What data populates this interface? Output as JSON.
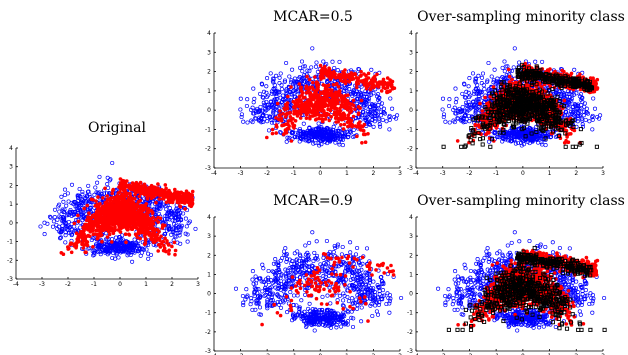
{
  "chart_data": [
    {
      "type": "scatter",
      "title": "Original",
      "xlim": [
        -4,
        3
      ],
      "ylim": [
        -3,
        4
      ],
      "xticks": [
        "-4",
        "-3",
        "-2",
        "-1",
        "0",
        "1",
        "2",
        "3"
      ],
      "yticks": [
        "4",
        "3",
        "2",
        "1",
        "0",
        "-1",
        "-2",
        "-3"
      ],
      "series": [
        {
          "color": "#0000ff",
          "marker": "open-circle",
          "shape": "majority-dome"
        },
        {
          "color": "#ff0000",
          "marker": "filled-dot",
          "shape": "minority-dome-and-band"
        }
      ]
    },
    {
      "type": "scatter",
      "title": "MCAR=0.5",
      "xlim": [
        -4,
        3
      ],
      "ylim": [
        -3,
        4
      ],
      "xticks": [
        "-4",
        "-3",
        "-2",
        "-1",
        "0",
        "1",
        "2",
        "3"
      ],
      "yticks": [
        "4",
        "3",
        "2",
        "1",
        "0",
        "-1",
        "-2",
        "-3"
      ],
      "missing_rate": 0.5,
      "series": [
        {
          "color": "#0000ff",
          "marker": "open-circle",
          "shape": "majority-dome"
        },
        {
          "color": "#ff0000",
          "marker": "filled-dot",
          "shape": "minority-dome-and-band"
        }
      ]
    },
    {
      "type": "scatter",
      "title": "Over-sampling minority class",
      "xlim": [
        -4,
        3
      ],
      "ylim": [
        -3,
        4
      ],
      "xticks": [
        "-4",
        "-3",
        "-2",
        "-1",
        "0",
        "1",
        "2",
        "3"
      ],
      "yticks": [
        "4",
        "3",
        "2",
        "1",
        "0",
        "-1",
        "-2",
        "-3"
      ],
      "series": [
        {
          "color": "#0000ff",
          "marker": "open-circle",
          "shape": "majority-dome"
        },
        {
          "color": "#ff0000",
          "marker": "filled-dot",
          "shape": "minority-dome-and-band"
        },
        {
          "color": "#000000",
          "marker": "open-square",
          "shape": "synthetic-samples"
        }
      ]
    },
    {
      "type": "scatter",
      "title": "MCAR=0.9",
      "xlim": [
        -4,
        3
      ],
      "ylim": [
        -3,
        4
      ],
      "xticks": [
        "-4",
        "-3",
        "-2",
        "-1",
        "0",
        "1",
        "2",
        "3"
      ],
      "yticks": [
        "4",
        "3",
        "2",
        "1",
        "0",
        "-1",
        "-2",
        "-3"
      ],
      "missing_rate": 0.9,
      "series": [
        {
          "color": "#0000ff",
          "marker": "open-circle",
          "shape": "majority-dome"
        },
        {
          "color": "#ff0000",
          "marker": "filled-dot",
          "shape": "minority-dome-and-band"
        }
      ]
    },
    {
      "type": "scatter",
      "title": "Over-sampling minority class",
      "xlim": [
        -4,
        3
      ],
      "ylim": [
        -3,
        4
      ],
      "xticks": [
        "-4",
        "-3",
        "-2",
        "-1",
        "0",
        "1",
        "2",
        "3"
      ],
      "yticks": [
        "4",
        "3",
        "2",
        "1",
        "0",
        "-1",
        "-2",
        "-3"
      ],
      "series": [
        {
          "color": "#0000ff",
          "marker": "open-circle",
          "shape": "majority-dome"
        },
        {
          "color": "#ff0000",
          "marker": "filled-dot",
          "shape": "minority-dome-and-band"
        },
        {
          "color": "#000000",
          "marker": "open-square",
          "shape": "synthetic-samples"
        }
      ]
    }
  ]
}
